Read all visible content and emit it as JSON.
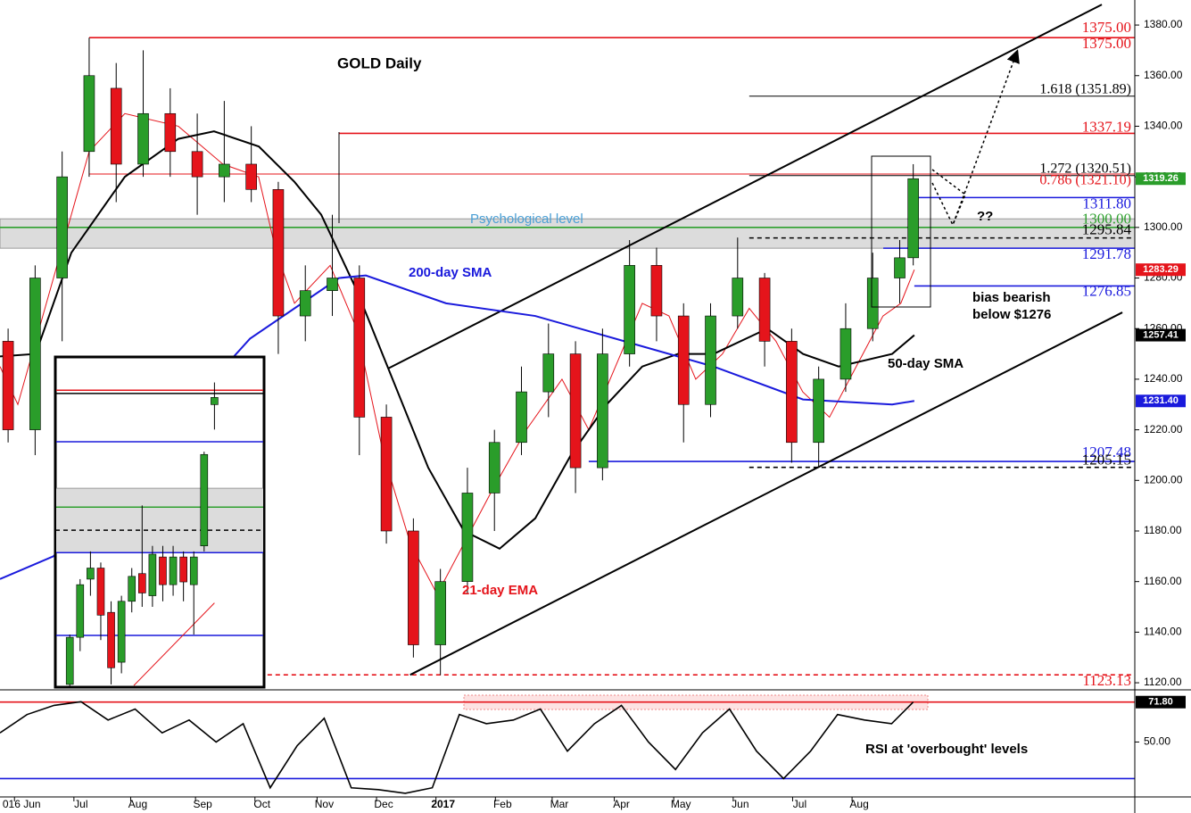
{
  "chart_data": {
    "type": "candlestick",
    "title": "GOLD Daily",
    "x": [
      3,
      13,
      23,
      33,
      43,
      53,
      63,
      73,
      83,
      93,
      103,
      113,
      123,
      133,
      143,
      153,
      163,
      173,
      183,
      193,
      203,
      213,
      223,
      233,
      243,
      253,
      263,
      273,
      283,
      293,
      303,
      313,
      323,
      333,
      338
    ],
    "open": [
      1255,
      1220,
      1280,
      1330,
      1355,
      1325,
      1345,
      1330,
      1320,
      1325,
      1315,
      1265,
      1275,
      1280,
      1225,
      1180,
      1135,
      1160,
      1195,
      1215,
      1235,
      1250,
      1205,
      1250,
      1285,
      1265,
      1230,
      1265,
      1280,
      1255,
      1215,
      1240,
      1260,
      1280,
      1288
    ],
    "high": [
      1260,
      1285,
      1330,
      1375,
      1365,
      1370,
      1355,
      1345,
      1350,
      1340,
      1318,
      1285,
      1305,
      1285,
      1230,
      1185,
      1165,
      1205,
      1220,
      1245,
      1262,
      1255,
      1260,
      1295,
      1292,
      1270,
      1270,
      1296,
      1282,
      1260,
      1245,
      1270,
      1290,
      1295,
      1325
    ],
    "low": [
      1215,
      1210,
      1255,
      1320,
      1310,
      1320,
      1320,
      1305,
      1310,
      1310,
      1250,
      1255,
      1265,
      1210,
      1175,
      1130,
      1123,
      1155,
      1180,
      1210,
      1225,
      1195,
      1200,
      1245,
      1255,
      1215,
      1225,
      1260,
      1245,
      1207,
      1205,
      1235,
      1255,
      1270,
      1285
    ],
    "close": [
      1220,
      1280,
      1320,
      1360,
      1325,
      1345,
      1330,
      1320,
      1325,
      1315,
      1265,
      1275,
      1280,
      1225,
      1180,
      1135,
      1160,
      1195,
      1215,
      1235,
      1250,
      1205,
      1250,
      1285,
      1265,
      1230,
      1265,
      1280,
      1255,
      1215,
      1240,
      1260,
      1280,
      1288,
      1319.26
    ],
    "up_color": "#2a9d2a",
    "down_color": "#e5141b",
    "xlim": [
      0,
      420
    ],
    "xticks": [
      {
        "value": 8,
        "label": "016 Jun"
      },
      {
        "value": 30,
        "label": "Jul"
      },
      {
        "value": 51,
        "label": "Aug"
      },
      {
        "value": 75,
        "label": "Sep"
      },
      {
        "value": 97,
        "label": "Oct"
      },
      {
        "value": 120,
        "label": "Nov"
      },
      {
        "value": 142,
        "label": "Dec"
      },
      {
        "value": 164,
        "label": "2017"
      },
      {
        "value": 186,
        "label": "Feb"
      },
      {
        "value": 207,
        "label": "Mar"
      },
      {
        "value": 230,
        "label": "Apr"
      },
      {
        "value": 252,
        "label": "May"
      },
      {
        "value": 274,
        "label": "Jun"
      },
      {
        "value": 296,
        "label": "Jul"
      },
      {
        "value": 318,
        "label": "Aug"
      }
    ],
    "ylim": [
      1117.2,
      1389.9
    ],
    "yticks": [
      {
        "value": 1120,
        "label": "1120.00"
      },
      {
        "value": 1140,
        "label": "1140.00"
      },
      {
        "value": 1160,
        "label": "1160.00"
      },
      {
        "value": 1180,
        "label": "1180.00"
      },
      {
        "value": 1200,
        "label": "1200.00"
      },
      {
        "value": 1220,
        "label": "1220.00"
      },
      {
        "value": 1240,
        "label": "1240.00"
      },
      {
        "value": 1260,
        "label": "1260.00"
      },
      {
        "value": 1280,
        "label": "1280.00"
      },
      {
        "value": 1300,
        "label": "1300.00"
      },
      {
        "value": 1320,
        "label": "1320.00"
      },
      {
        "value": 1340,
        "label": "1340.00"
      },
      {
        "value": 1360,
        "label": "1360.00"
      },
      {
        "value": 1380,
        "label": "1380.00"
      }
    ],
    "indicators": [
      {
        "name": "21-day EMA",
        "color": "#e5141b",
        "x": [
          0,
          6.6,
          19.8,
          33,
          46.2,
          66,
          82.5,
          95.7,
          102.3,
          109,
          122.2,
          132,
          142,
          151.9,
          161.8,
          171.7,
          181.6,
          194.8,
          208,
          217.9,
          227.8,
          237.7,
          247.6,
          257.5,
          267.4,
          277.3,
          287.2,
          297.1,
          307,
          316.9,
          326.8,
          333.4,
          338.4
        ],
        "values": [
          1245,
          1230,
          1280,
          1330,
          1345,
          1340,
          1325,
          1320,
          1290,
          1270,
          1285,
          1260,
          1210,
          1175,
          1155,
          1175,
          1195,
          1220,
          1240,
          1220,
          1245,
          1270,
          1265,
          1240,
          1250,
          1268,
          1255,
          1235,
          1225,
          1245,
          1265,
          1270,
          1283.29
        ]
      },
      {
        "name": "50-day SMA",
        "color": "#000000",
        "x": [
          0,
          13.2,
          26.4,
          46.2,
          66,
          79.2,
          95.8,
          109,
          118.9,
          132.1,
          145.3,
          158.5,
          171.7,
          184.9,
          198.1,
          211.3,
          224.5,
          237.7,
          250.9,
          264.1,
          284,
          297.2,
          310.4,
          330.2,
          338.4
        ],
        "values": [
          1249,
          1250,
          1290,
          1320,
          1335,
          1338,
          1332,
          1318,
          1305,
          1275,
          1240,
          1205,
          1180,
          1173,
          1185,
          1210,
          1230,
          1245,
          1250,
          1250,
          1260,
          1250,
          1245,
          1250,
          1257.41
        ]
      },
      {
        "name": "200-day SMA",
        "color": "#1a1adc",
        "x": [
          0,
          19.8,
          92.5,
          125.5,
          135.4,
          165.1,
          198.1,
          231.1,
          264.1,
          297.2,
          330.2,
          338.4
        ],
        "values": [
          1161,
          1170,
          1256,
          1280,
          1281,
          1270,
          1265,
          1255,
          1245,
          1232,
          1230,
          1231.4
        ]
      }
    ],
    "levels": [
      {
        "value": 1375,
        "label": "1375.00",
        "color": "#e5141b",
        "from": 33,
        "dashed": false
      },
      {
        "value": 1351.89,
        "label": "1.618 (1351.89)",
        "color": "#000000",
        "from": 277.3,
        "dashed": false
      },
      {
        "value": 1337.19,
        "label": "1337.19",
        "color": "#e5141b",
        "from": 125.5,
        "dashed": false
      },
      {
        "value": 1321.1,
        "label": "0.786 (1321.10)",
        "color": "#e5141b",
        "from": 33,
        "dashed": false
      },
      {
        "value": 1320.51,
        "label": "1.272 (1320.51)",
        "color": "#000000",
        "from": 277.3,
        "dashed": false
      },
      {
        "value": 1311.8,
        "label": "1311.80",
        "color": "#1a1adc",
        "from": 338.4,
        "dashed": false
      },
      {
        "value": 1300,
        "label": "1300.00",
        "color": "#2ea02e",
        "from": 0,
        "dashed": false
      },
      {
        "value": 1295.84,
        "label": "1295.84",
        "color": "#000000",
        "from": 277.3,
        "dashed": true
      },
      {
        "value": 1291.78,
        "label": "1291.78",
        "color": "#1a1adc",
        "from": 326.9,
        "dashed": false
      },
      {
        "value": 1276.85,
        "label": "1276.85",
        "color": "#1a1adc",
        "from": 338.4,
        "dashed": false
      },
      {
        "value": 1207.48,
        "label": "1207.48",
        "color": "#1a1adc",
        "from": 217.9,
        "dashed": false
      },
      {
        "value": 1205.15,
        "label": "1205.15",
        "color": "#000000",
        "from": 277.3,
        "dashed": true
      },
      {
        "value": 1123.13,
        "label": "1123.13",
        "color": "#e5141b",
        "from": 99,
        "dashed": true
      }
    ],
    "zone": {
      "label": "Psychological level",
      "range": [
        1291.78,
        1303.4
      ]
    },
    "trendlines": [
      {
        "x": [
          143.6,
          407.8
        ],
        "values": [
          1244.2,
          1388.1
        ]
      },
      {
        "x": [
          151.8,
          415.4
        ],
        "values": [
          1123.13,
          1266.4
        ]
      }
    ],
    "price_labels": [
      {
        "value": 1319.26,
        "label": "1319.26",
        "color": "#2a9d2a"
      },
      {
        "value": 1283.29,
        "label": "1283.29",
        "color": "#e5141b"
      },
      {
        "value": 1257.41,
        "label": "1257.41",
        "color": "#000000"
      },
      {
        "value": 1231.4,
        "label": "1231.40",
        "color": "#1a1adc"
      }
    ],
    "annotations": [
      "Psychological level",
      "200-day SMA",
      "50-day SMA",
      "21-day EMA",
      "bias bearish",
      "below $1276",
      "??",
      "RSI at 'overbought' levels"
    ],
    "rsi": {
      "x": [
        0,
        10,
        20,
        30,
        40,
        50,
        60,
        70,
        80,
        90,
        100,
        110,
        120,
        130,
        140,
        150,
        160,
        170,
        180,
        190,
        200,
        210,
        220,
        230,
        240,
        250,
        260,
        270,
        280,
        290,
        300,
        310,
        320,
        330,
        338
      ],
      "values": [
        55,
        65,
        70,
        72,
        62,
        68,
        55,
        62,
        50,
        60,
        25,
        48,
        63,
        25,
        24,
        22,
        25,
        65,
        60,
        62,
        68,
        45,
        60,
        70,
        50,
        35,
        55,
        68,
        45,
        30,
        45,
        65,
        62,
        60,
        71.8
      ],
      "ylim": [
        20,
        78
      ],
      "yticks": [
        {
          "value": 50,
          "label": "50.00"
        }
      ],
      "levels": [
        {
          "value": 71.8,
          "color": "#e5141b"
        },
        {
          "value": 30,
          "color": "#1a1adc"
        }
      ],
      "current": {
        "value": 71.8,
        "label": "71.80"
      }
    },
    "inset": {
      "xlim": [
        -1.4,
        18.8
      ],
      "ylim": [
        1267.5,
        1327.1
      ],
      "x": [
        0,
        1,
        2,
        3,
        4,
        5,
        6,
        7,
        8,
        9,
        10,
        11,
        12,
        13,
        14
      ],
      "open": [
        1268,
        1276.5,
        1287,
        1289,
        1281,
        1272,
        1283,
        1288,
        1284,
        1291,
        1286,
        1291,
        1286,
        1293,
        1318.5
      ],
      "high": [
        1277,
        1287,
        1292,
        1290,
        1283,
        1284,
        1289,
        1300.3,
        1293,
        1293,
        1293,
        1292,
        1292,
        1310,
        1322.5
      ],
      "low": [
        1266,
        1274,
        1284,
        1276,
        1268,
        1270,
        1281,
        1282,
        1282,
        1283,
        1284,
        1283,
        1277,
        1292,
        1314
      ],
      "close": [
        1276.5,
        1286,
        1289,
        1280.5,
        1271,
        1283,
        1287.5,
        1284.5,
        1291.5,
        1286,
        1291,
        1286.5,
        1291,
        1309.5,
        1319.8
      ],
      "ema": {
        "x": [
          6.2,
          14
        ],
        "values": [
          1267.8,
          1282.7
        ]
      }
    }
  }
}
